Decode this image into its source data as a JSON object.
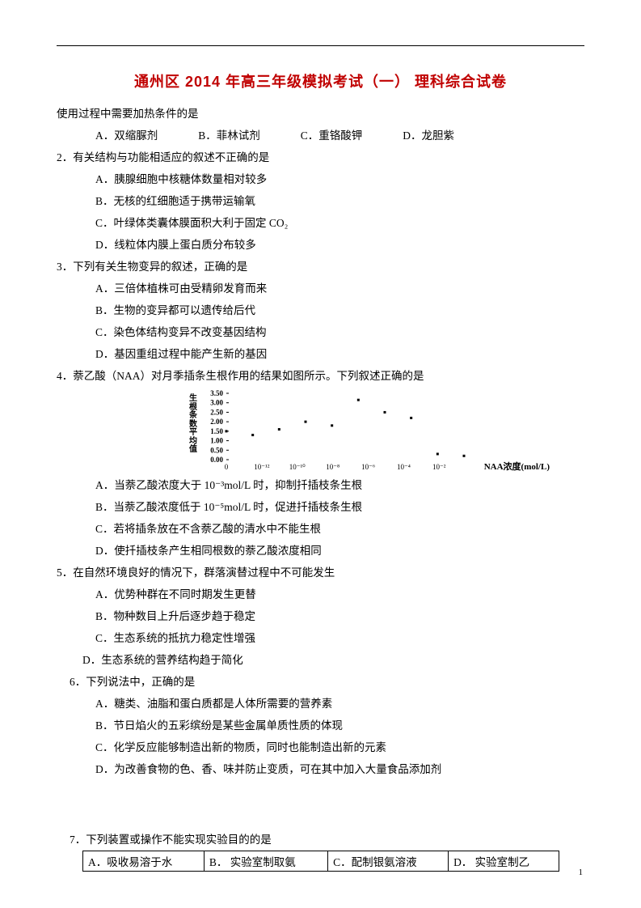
{
  "title": "通州区 2014 年高三年级模拟考试（一）   理科综合试卷",
  "preline": "使用过程中需要加热条件的是",
  "q0_opts": {
    "a": "A．双缩脲剂",
    "b": "B．菲林试剂",
    "c": "C．重铬酸钾",
    "d": "D．龙胆紫"
  },
  "q2": {
    "stem": "2．有关结构与功能相适应的叙述不正确的是",
    "a": "A．胰腺细胞中核糖体数量相对较多",
    "b": "B．无核的红细胞适于携带运输氧",
    "c": "C．叶绿体类囊体膜面积大利于固定 CO₂",
    "d": "D．线粒体内膜上蛋白质分布较多"
  },
  "q3": {
    "stem": "3．下列有关生物变异的叙述，正确的是",
    "a": "A．三倍体植株可由受精卵发育而来",
    "b": "B．生物的变异都可以遗传给后代",
    "c": "C．染色体结构变异不改变基因结构",
    "d": "D．基因重组过程中能产生新的基因"
  },
  "q4": {
    "stem": "4．萘乙酸（NAA）对月季插条生根作用的结果如图所示。下列叙述正确的是",
    "a": "A．当萘乙酸浓度大于 10⁻³mol/L 时，抑制扦插枝条生根",
    "b": "B．当萘乙酸浓度低于 10⁻⁵mol/L 时，促进扦插枝条生根",
    "c": "C．若将插条放在不含萘乙酸的清水中不能生根",
    "d": "D．使扦插枝条产生相同根数的萘乙酸浓度相同"
  },
  "q5": {
    "stem": "5．在自然环境良好的情况下，群落演替过程中不可能发生",
    "a": "A．优势种群在不同时期发生更替",
    "b": "B．物种数目上升后逐步趋于稳定",
    "c": "C．生态系统的抵抗力稳定性增强",
    "d": "D．生态系统的营养结构趋于简化"
  },
  "q6": {
    "stem": "6．下列说法中，正确的是",
    "a": "A．糖类、油脂和蛋白质都是人体所需要的营养素",
    "b": "B．节日焰火的五彩缤纷是某些金属单质性质的体现",
    "c": "C．化学反应能够制造出新的物质，同时也能制造出新的元素",
    "d": "D．为改善食物的色、香、味并防止变质，可在其中加入大量食品添加剂"
  },
  "q7": {
    "stem": "7．下列装置或操作不能实现实验目的的是",
    "cells": [
      "A．吸收易溶于水",
      "B．  实验室制取氨",
      "C．配制银氨溶液",
      "D．  实验室制乙"
    ]
  },
  "chart": {
    "type": "scatter",
    "ylabel_chars": "生根条数平均值",
    "xlabel": "NAA浓度(mol/L)",
    "y_ticks": [
      "3.50",
      "3.00",
      "2.50",
      "2.00",
      "1.50",
      "1.00",
      "0.50",
      "0.00"
    ],
    "ylim": [
      0.0,
      3.5
    ],
    "x_ticks": [
      "0",
      "10⁻¹²",
      "10⁻¹⁰",
      "10⁻⁸",
      "10⁻⁶",
      "10⁻⁴",
      "10⁻²"
    ],
    "points": [
      {
        "x": 0,
        "y": 1.5
      },
      {
        "x": 1,
        "y": 1.3
      },
      {
        "x": 2,
        "y": 1.6
      },
      {
        "x": 3,
        "y": 2.0
      },
      {
        "x": 4,
        "y": 1.8
      },
      {
        "x": 5,
        "y": 3.15
      },
      {
        "x": 6,
        "y": 2.5
      },
      {
        "x": 7,
        "y": 2.2
      },
      {
        "x": 8,
        "y": 0.3
      },
      {
        "x": 9,
        "y": 0.2
      }
    ],
    "marker_color": "#000000",
    "axis_color": "#000000",
    "background_color": "#ffffff",
    "tick_fontsize": 9,
    "label_fontsize": 11,
    "marker_size": 3
  },
  "page_number": "1"
}
